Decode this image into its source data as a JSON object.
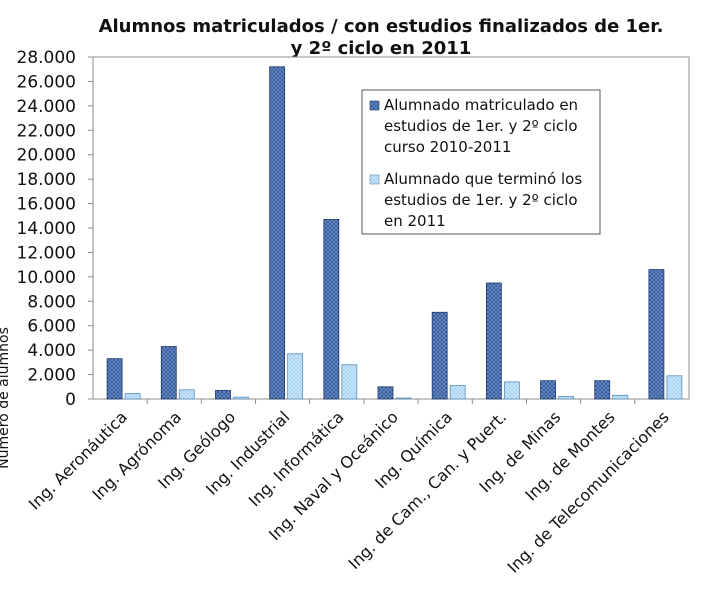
{
  "chart_data": {
    "type": "bar",
    "title_lines": [
      "Alumnos matriculados / con estudios finalizados de 1er.",
      "y 2º ciclo en 2011"
    ],
    "ylabel": "Número de alumnos",
    "xlabel": "",
    "ylim": [
      0,
      28000
    ],
    "ytick_step": 2000,
    "ytick_labels": [
      "0",
      "2.000",
      "4.000",
      "6.000",
      "8.000",
      "10.000",
      "12.000",
      "14.000",
      "16.000",
      "18.000",
      "20.000",
      "22.000",
      "24.000",
      "26.000",
      "28.000"
    ],
    "grid": false,
    "legend_position": "top-right",
    "categories": [
      "Ing. Aeronáutica",
      "Ing. Agrónoma",
      "Ing. Geólogo",
      "Ing. Industrial",
      "Ing. Informática",
      "Ing. Naval y Oceánico",
      "Ing. Química",
      "Ing. de Cam., Can. y Puert.",
      "Ing. de Minas",
      "Ing. de Montes",
      "Ing. de Telecomunicaciones"
    ],
    "series": [
      {
        "name": "Alumnado matriculado en estudios de 1er. y 2º ciclo curso 2010-2011",
        "legend_lines": [
          "Alumnado matriculado en",
          "estudios de 1er. y 2º ciclo",
          "curso 2010-2011"
        ],
        "color": "#2F5597",
        "values": [
          3300,
          4300,
          700,
          27200,
          14700,
          1000,
          7100,
          9500,
          1500,
          1500,
          10600
        ]
      },
      {
        "name": "Alumnado que terminó los estudios de 1er. y 2º ciclo en 2011",
        "legend_lines": [
          "Alumnado que terminó los",
          "estudios de 1er. y 2º ciclo",
          "en 2011"
        ],
        "color": "#A9D4F5",
        "values": [
          450,
          750,
          150,
          3700,
          2800,
          80,
          1100,
          1400,
          200,
          300,
          1900
        ]
      }
    ]
  }
}
